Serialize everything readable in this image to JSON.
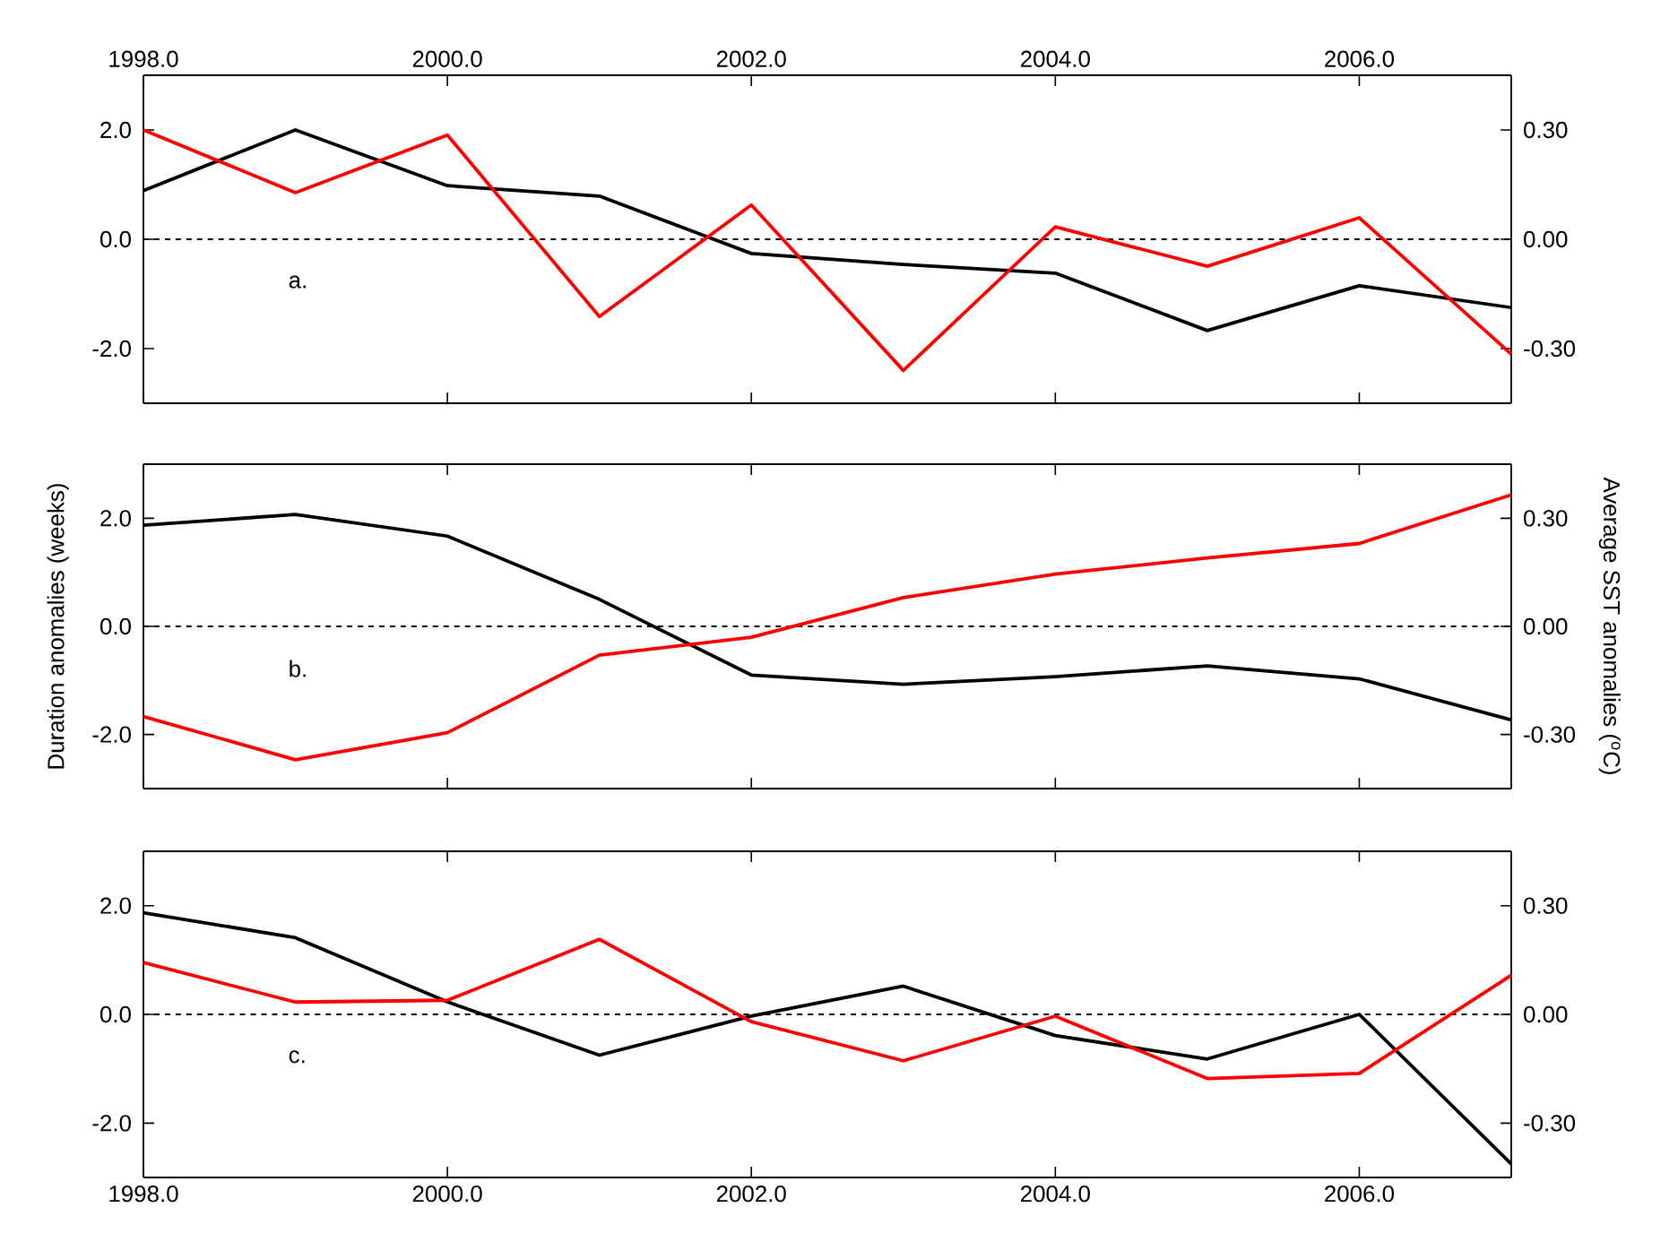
{
  "chart_data": [
    {
      "type": "line",
      "xlim": [
        1998,
        2007
      ],
      "xticks": [
        {
          "value": 1998,
          "label": "1998.0"
        },
        {
          "value": 2000,
          "label": "2000.0"
        },
        {
          "value": 2002,
          "label": "2002.0"
        },
        {
          "value": 2004,
          "label": "2004.0"
        },
        {
          "value": 2006,
          "label": "2006.0"
        }
      ],
      "x": [
        1998,
        1999,
        2000,
        2001,
        2002,
        2003,
        2004,
        2005,
        2006,
        2007
      ],
      "ylim": [
        -3,
        3
      ],
      "yticks": [
        {
          "value": -2,
          "label": "-2.0"
        },
        {
          "value": 0,
          "label": "0.0"
        },
        {
          "value": 2,
          "label": "2.0"
        }
      ],
      "y2lim": [
        -0.45,
        0.45
      ],
      "y2ticks": [
        {
          "value": -0.3,
          "label": "-0.30"
        },
        {
          "value": 0,
          "label": "0.00"
        },
        {
          "value": 0.3,
          "label": "0.30"
        }
      ],
      "series": [
        {
          "color": "#000000",
          "values": [
            0.89,
            2.0,
            0.98,
            0.79,
            -0.26,
            -0.46,
            -0.62,
            -1.67,
            -0.85,
            -1.25
          ]
        },
        {
          "color": "#ff0000",
          "axis": "y2",
          "values": [
            0.3,
            0.128,
            0.286,
            -0.212,
            0.094,
            -0.36,
            0.034,
            -0.074,
            0.059,
            -0.315
          ]
        }
      ],
      "ref_lines": [
        {
          "axis": "y",
          "value": 0,
          "color": "#000000",
          "line_style": "dashed"
        }
      ],
      "annotations": [
        "a."
      ]
    },
    {
      "type": "line",
      "xlim": [
        1998,
        2007
      ],
      "xticks": [
        1998,
        2000,
        2002,
        2004,
        2006
      ],
      "tick_labels": "y",
      "x": [
        1998,
        1999,
        2000,
        2001,
        2002,
        2003,
        2004,
        2005,
        2006,
        2007
      ],
      "ylabel": "Duration anomalies (weeks)",
      "y2label": "Average SST anomalies ($^{o}$C)",
      "ylim": [
        -3,
        3
      ],
      "yticks": [
        {
          "value": -2,
          "label": "-2.0"
        },
        {
          "value": 0,
          "label": "0.0"
        },
        {
          "value": 2,
          "label": "2.0"
        }
      ],
      "y2lim": [
        -0.45,
        0.45
      ],
      "y2ticks": [
        {
          "value": -0.3,
          "label": "-0.30"
        },
        {
          "value": 0,
          "label": "0.00"
        },
        {
          "value": 0.3,
          "label": "0.30"
        }
      ],
      "series": [
        {
          "color": "#000000",
          "values": [
            1.87,
            2.07,
            1.67,
            0.5,
            -0.9,
            -1.07,
            -0.93,
            -0.73,
            -0.97,
            -1.73
          ]
        },
        {
          "color": "#ff0000",
          "axis": "y2",
          "values": [
            -0.25,
            -0.37,
            -0.295,
            -0.08,
            -0.03,
            0.08,
            0.145,
            0.19,
            0.23,
            0.365
          ]
        }
      ],
      "ref_lines": [
        {
          "axis": "y",
          "value": 0,
          "color": "#000000",
          "line_style": "dashed"
        }
      ],
      "annotations": [
        "b."
      ]
    },
    {
      "type": "line",
      "xlim": [
        1998,
        2007
      ],
      "xticks": [
        {
          "value": 1998,
          "label": "1998.0"
        },
        {
          "value": 2000,
          "label": "2000.0"
        },
        {
          "value": 2002,
          "label": "2002.0"
        },
        {
          "value": 2004,
          "label": "2004.0"
        },
        {
          "value": 2006,
          "label": "2006.0"
        }
      ],
      "x": [
        1998,
        1999,
        2000,
        2001,
        2002,
        2003,
        2004,
        2005,
        2006,
        2007
      ],
      "ylim": [
        -3,
        3
      ],
      "yticks": [
        {
          "value": -2,
          "label": "-2.0"
        },
        {
          "value": 0,
          "label": "0.0"
        },
        {
          "value": 2,
          "label": "2.0"
        }
      ],
      "y2lim": [
        -0.45,
        0.45
      ],
      "y2ticks": [
        {
          "value": -0.3,
          "label": "-0.30"
        },
        {
          "value": 0,
          "label": "0.00"
        },
        {
          "value": 0.3,
          "label": "0.30"
        }
      ],
      "series": [
        {
          "color": "#000000",
          "values": [
            1.87,
            1.41,
            0.23,
            -0.75,
            -0.03,
            0.52,
            -0.39,
            -0.82,
            0.0,
            -2.75
          ]
        },
        {
          "color": "#ff0000",
          "axis": "y2",
          "values": [
            0.143,
            0.034,
            0.039,
            0.207,
            -0.02,
            -0.128,
            -0.005,
            -0.177,
            -0.163,
            0.108
          ]
        }
      ],
      "ref_lines": [
        {
          "axis": "y",
          "value": 0,
          "color": "#000000",
          "line_style": "dashed"
        }
      ],
      "annotations": [
        "c."
      ]
    }
  ]
}
